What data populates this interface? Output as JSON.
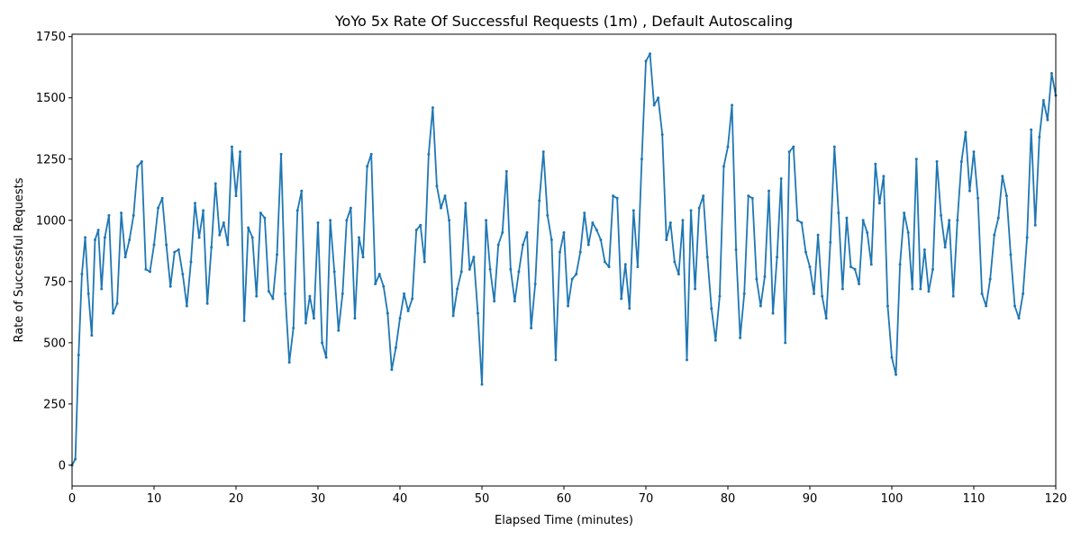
{
  "chart_data": {
    "type": "line",
    "title": "YoYo 5x Rate Of Successful Requests (1m) , Default Autoscaling",
    "xlabel": "Elapsed Time (minutes)",
    "ylabel": "Rate of Successful Requests",
    "xlim": [
      0,
      120
    ],
    "ylim": [
      -85,
      1760
    ],
    "xticks": [
      "0",
      "10",
      "20",
      "30",
      "40",
      "50",
      "60",
      "70",
      "80",
      "90",
      "100",
      "110",
      "120"
    ],
    "yticks": [
      "0",
      "250",
      "500",
      "750",
      "1000",
      "1250",
      "1500",
      "1750"
    ],
    "grid": false,
    "color": "#1f77b4",
    "series": [
      {
        "x": [
          0,
          0.4,
          0.8,
          1.2,
          1.6,
          2.0,
          2.4,
          2.8,
          3.2,
          3.6,
          4.0,
          4.5,
          5.0,
          5.5,
          6.0,
          6.5,
          7.0,
          7.5,
          8.0,
          8.5,
          9.0,
          9.5,
          10.0,
          10.5,
          11.0,
          11.5,
          12.0,
          12.5,
          13.0,
          13.5,
          14.0,
          14.5,
          15.0,
          15.5,
          16.0,
          16.5,
          17.0,
          17.5,
          18.0,
          18.5,
          19.0,
          19.5,
          20.0,
          20.5,
          21.0,
          21.5,
          22.0,
          22.5,
          23.0,
          23.5,
          24.0,
          24.5,
          25.0,
          25.5,
          26.0,
          26.5,
          27.0,
          27.5,
          28.0,
          28.5,
          29.0,
          29.5,
          30.0,
          30.5,
          31.0,
          31.5,
          32.0,
          32.5,
          33.0,
          33.5,
          34.0,
          34.5,
          35.0,
          35.5,
          36.0,
          36.5,
          37.0,
          37.5,
          38.0,
          38.5,
          39.0,
          39.5,
          40.0,
          40.5,
          41.0,
          41.5,
          42.0,
          42.5,
          43.0,
          43.5,
          44.0,
          44.5,
          45.0,
          45.5,
          46.0,
          46.5,
          47.0,
          47.5,
          48.0,
          48.5,
          49.0,
          49.5,
          50.0,
          50.5,
          51.0,
          51.5,
          52.0,
          52.5,
          53.0,
          53.5,
          54.0,
          54.5,
          55.0,
          55.5,
          56.0,
          56.5,
          57.0,
          57.5,
          58.0,
          58.5,
          59.0,
          59.5,
          60.0,
          60.5,
          61.0,
          61.5,
          62.0,
          62.5,
          63.0,
          63.5,
          64.0,
          64.5,
          65.0,
          65.5,
          66.0,
          66.5,
          67.0,
          67.5,
          68.0,
          68.5,
          69.0,
          69.5,
          70.0,
          70.5,
          71.0,
          71.5,
          72.0,
          72.5,
          73.0,
          73.5,
          74.0,
          74.5,
          75.0,
          75.5,
          76.0,
          76.5,
          77.0,
          77.5,
          78.0,
          78.5,
          79.0,
          79.5,
          80.0,
          80.5,
          81.0,
          81.5,
          82.0,
          82.5,
          83.0,
          83.5,
          84.0,
          84.5,
          85.0,
          85.5,
          86.0,
          86.5,
          87.0,
          87.5,
          88.0,
          88.5,
          89.0,
          89.5,
          90.0,
          90.5,
          91.0,
          91.5,
          92.0,
          92.5,
          93.0,
          93.5,
          94.0,
          94.5,
          95.0,
          95.5,
          96.0,
          96.5,
          97.0,
          97.5,
          98.0,
          98.5,
          99.0,
          99.5,
          100.0,
          100.5,
          101.0,
          101.5,
          102.0,
          102.5,
          103.0,
          103.5,
          104.0,
          104.5,
          105.0,
          105.5,
          106.0,
          106.5,
          107.0,
          107.5,
          108.0,
          108.5,
          109.0,
          109.5,
          110.0,
          110.5,
          111.0,
          111.5,
          112.0,
          112.5,
          113.0,
          113.5,
          114.0,
          114.5,
          115.0,
          115.5,
          116.0,
          116.5,
          117.0,
          117.5,
          118.0,
          118.5,
          119.0,
          119.5,
          120.0
        ],
        "values": [
          0,
          25,
          450,
          780,
          930,
          700,
          530,
          920,
          960,
          720,
          930,
          1020,
          620,
          660,
          1030,
          850,
          920,
          1020,
          1220,
          1240,
          800,
          790,
          900,
          1050,
          1090,
          900,
          730,
          870,
          880,
          780,
          650,
          830,
          1070,
          930,
          1040,
          660,
          890,
          1150,
          940,
          990,
          900,
          1300,
          1100,
          1280,
          590,
          970,
          930,
          690,
          1030,
          1010,
          710,
          680,
          860,
          1270,
          700,
          420,
          560,
          1040,
          1120,
          580,
          690,
          600,
          990,
          500,
          440,
          1000,
          790,
          550,
          700,
          1000,
          1050,
          600,
          930,
          850,
          1220,
          1270,
          740,
          780,
          730,
          620,
          390,
          480,
          600,
          700,
          630,
          680,
          960,
          980,
          830,
          1270,
          1460,
          1140,
          1050,
          1100,
          1000,
          610,
          720,
          790,
          1070,
          800,
          850,
          620,
          330,
          1000,
          800,
          670,
          900,
          950,
          1200,
          800,
          670,
          790,
          900,
          950,
          560,
          740,
          1080,
          1280,
          1020,
          920,
          430,
          870,
          950,
          650,
          760,
          780,
          870,
          1030,
          900,
          990,
          960,
          920,
          830,
          810,
          1100,
          1090,
          680,
          820,
          640,
          1040,
          810,
          1250,
          1650,
          1680,
          1470,
          1500,
          1350,
          920,
          990,
          830,
          780,
          1000,
          430,
          1040,
          720,
          1050,
          1100,
          850,
          640,
          510,
          690,
          1220,
          1300,
          1470,
          880,
          520,
          700,
          1100,
          1090,
          760,
          650,
          770,
          1120,
          620,
          850,
          1170,
          500,
          1280,
          1300,
          1000,
          990,
          870,
          810,
          700,
          940,
          690,
          600,
          910,
          1300,
          1030,
          720,
          1010,
          810,
          800,
          740,
          1000,
          950,
          820,
          1230,
          1070,
          1180,
          650,
          440,
          370,
          820,
          1030,
          950,
          720,
          1250,
          720,
          880,
          710,
          800,
          1240,
          1020,
          890,
          1000,
          690,
          1000,
          1240,
          1360,
          1120,
          1280,
          1090,
          700,
          650,
          760,
          940,
          1010,
          1180,
          1100,
          860,
          650,
          600,
          700,
          930,
          1370,
          980,
          1340,
          1490,
          1410,
          1600,
          1510
        ]
      }
    ]
  }
}
